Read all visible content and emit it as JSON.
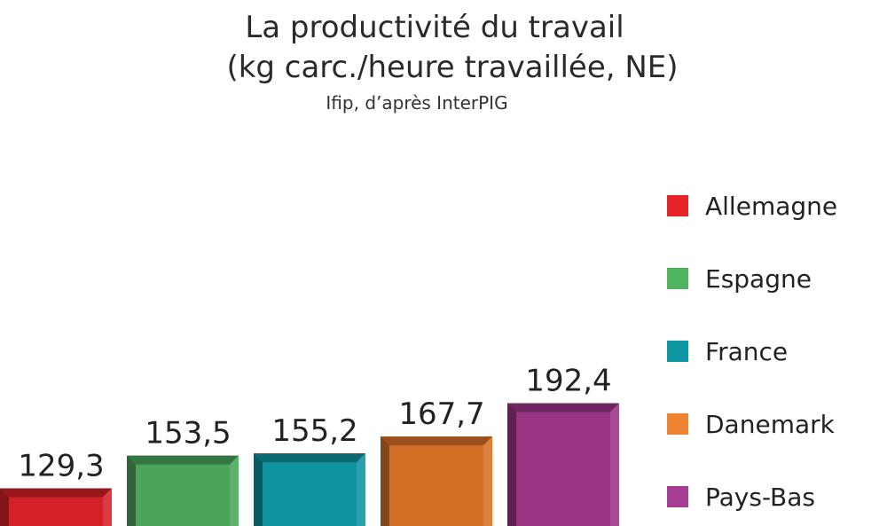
{
  "chart_data": {
    "type": "bar",
    "title_line1": "La productivité du travail",
    "title_line2": "(kg carc./heure travaillée, NE)",
    "source": "Ifip, d’après InterPIG",
    "categories": [
      "Allemagne",
      "Espagne",
      "France",
      "Danemark",
      "Pays-Bas"
    ],
    "values": [
      129.3,
      153.5,
      155.2,
      167.7,
      192.4
    ],
    "value_labels": [
      "129,3",
      "153,5",
      "155,2",
      "167,7",
      "192,4"
    ],
    "colors": [
      "#d42027",
      "#4aa55a",
      "#0e93a0",
      "#d56f27",
      "#9a3384"
    ],
    "legend_colors": [
      "#e8242b",
      "#4fb35f",
      "#0e96a3",
      "#f08330",
      "#a63e92"
    ],
    "legend_position": "right",
    "grid": false,
    "ylim": [
      0,
      210
    ]
  }
}
